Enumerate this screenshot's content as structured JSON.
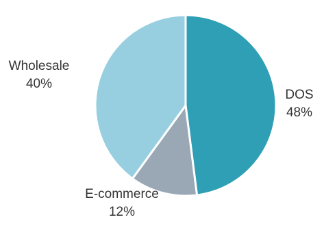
{
  "chart_data": {
    "type": "pie",
    "title": "",
    "start_angle_deg": 0,
    "direction": "clockwise",
    "legend": "none",
    "slices": [
      {
        "label": "DOS",
        "value": 48,
        "value_label": "48%",
        "color": "#2f9fb6"
      },
      {
        "label": "E-commerce",
        "value": 12,
        "value_label": "12%",
        "color": "#9aa7b5"
      },
      {
        "label": "Wholesale",
        "value": 40,
        "value_label": "40%",
        "color": "#97cfe0"
      }
    ]
  }
}
